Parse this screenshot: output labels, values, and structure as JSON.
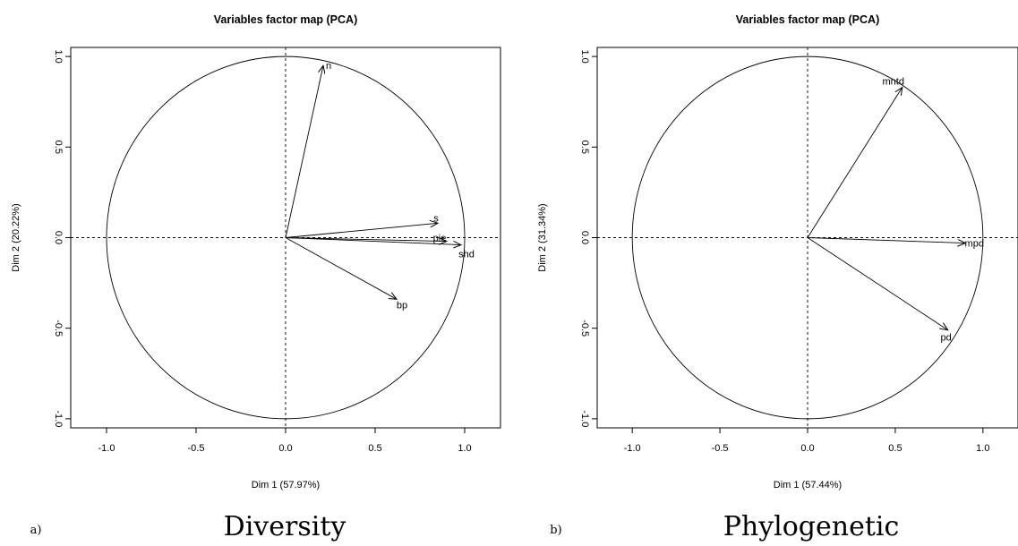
{
  "chart_data": [
    {
      "type": "scatter",
      "subtype": "pca-variables-factor-map",
      "title": "Variables factor map (PCA)",
      "xlabel": "Dim 1 (57.97%)",
      "ylabel": "Dim 2 (20.22%)",
      "xlim": [
        -1.2,
        1.2
      ],
      "ylim": [
        -1.05,
        1.05
      ],
      "xticks": [
        "-1.0",
        "-0.5",
        "0.0",
        "0.5",
        "1.0"
      ],
      "yticks": [
        "-1.0",
        "-0.5",
        "0.0",
        "0.5",
        "1.0"
      ],
      "grid": false,
      "unit_circle": true,
      "reference_lines": "dashed at x=0 and y=0",
      "panel_letter": "a)",
      "caption": "Diversity",
      "variables": [
        {
          "name": "n",
          "x": 0.21,
          "y": 0.95
        },
        {
          "name": "s",
          "x": 0.85,
          "y": 0.08
        },
        {
          "name": "pie",
          "x": 0.9,
          "y": -0.02
        },
        {
          "name": "shd",
          "x": 0.98,
          "y": -0.04
        },
        {
          "name": "bp",
          "x": 0.62,
          "y": -0.34
        }
      ]
    },
    {
      "type": "scatter",
      "subtype": "pca-variables-factor-map",
      "title": "Variables factor map (PCA)",
      "xlabel": "Dim 1 (57.44%)",
      "ylabel": "Dim 2 (31.34%)",
      "xlim": [
        -1.2,
        1.2
      ],
      "ylim": [
        -1.05,
        1.05
      ],
      "xticks": [
        "-1.0",
        "-0.5",
        "0.0",
        "0.5",
        "1.0"
      ],
      "yticks": [
        "-1.0",
        "-0.5",
        "0.0",
        "0.5",
        "1.0"
      ],
      "grid": false,
      "unit_circle": true,
      "reference_lines": "dashed at x=0 and y=0",
      "panel_letter": "b)",
      "caption": "Phylogenetic",
      "variables": [
        {
          "name": "mntd",
          "x": 0.54,
          "y": 0.83
        },
        {
          "name": "mpd",
          "x": 0.9,
          "y": -0.03
        },
        {
          "name": "pd",
          "x": 0.8,
          "y": -0.51
        }
      ]
    }
  ]
}
